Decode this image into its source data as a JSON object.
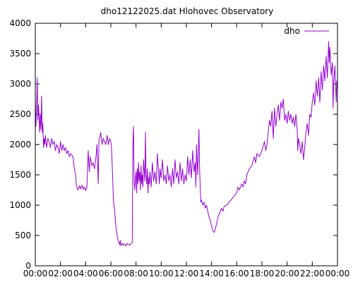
{
  "chart_data": {
    "type": "line",
    "title": "dho12122025.dat Hlohovec Observatory",
    "xlabel": "",
    "ylabel": "",
    "xlim": [
      0,
      24
    ],
    "ylim": [
      0,
      4000
    ],
    "grid": false,
    "legend_position": "top-right",
    "x_ticks": [
      {
        "value": 0,
        "label": "00:00"
      },
      {
        "value": 2,
        "label": "02:00"
      },
      {
        "value": 4,
        "label": "04:00"
      },
      {
        "value": 6,
        "label": "06:00"
      },
      {
        "value": 8,
        "label": "08:00"
      },
      {
        "value": 10,
        "label": "10:00"
      },
      {
        "value": 12,
        "label": "12:00"
      },
      {
        "value": 14,
        "label": "14:00"
      },
      {
        "value": 16,
        "label": "16:00"
      },
      {
        "value": 18,
        "label": "18:00"
      },
      {
        "value": 20,
        "label": "20:00"
      },
      {
        "value": 22,
        "label": "22:00"
      },
      {
        "value": 24,
        "label": "00:00"
      }
    ],
    "y_ticks": [
      {
        "value": 0,
        "label": "0"
      },
      {
        "value": 500,
        "label": "500"
      },
      {
        "value": 1000,
        "label": "1000"
      },
      {
        "value": 1500,
        "label": "1500"
      },
      {
        "value": 2000,
        "label": "2000"
      },
      {
        "value": 2500,
        "label": "2500"
      },
      {
        "value": 3000,
        "label": "3000"
      },
      {
        "value": 3500,
        "label": "3500"
      },
      {
        "value": 4000,
        "label": "4000"
      }
    ],
    "series": [
      {
        "name": "dho",
        "color": "#9400d3",
        "points": [
          [
            0.0,
            2750
          ],
          [
            0.05,
            2300
          ],
          [
            0.1,
            2600
          ],
          [
            0.15,
            3100
          ],
          [
            0.2,
            2400
          ],
          [
            0.25,
            2650
          ],
          [
            0.3,
            2450
          ],
          [
            0.35,
            2200
          ],
          [
            0.4,
            2500
          ],
          [
            0.45,
            2250
          ],
          [
            0.5,
            2800
          ],
          [
            0.55,
            2200
          ],
          [
            0.6,
            2350
          ],
          [
            0.65,
            1950
          ],
          [
            0.7,
            2100
          ],
          [
            0.75,
            2000
          ],
          [
            0.8,
            2150
          ],
          [
            0.9,
            1950
          ],
          [
            1.0,
            2100
          ],
          [
            1.1,
            2050
          ],
          [
            1.2,
            1950
          ],
          [
            1.3,
            2100
          ],
          [
            1.4,
            2000
          ],
          [
            1.5,
            2050
          ],
          [
            1.6,
            1900
          ],
          [
            1.7,
            2000
          ],
          [
            1.8,
            1950
          ],
          [
            1.9,
            1850
          ],
          [
            2.0,
            2050
          ],
          [
            2.1,
            1900
          ],
          [
            2.2,
            2000
          ],
          [
            2.3,
            1900
          ],
          [
            2.4,
            1950
          ],
          [
            2.5,
            1850
          ],
          [
            2.6,
            1900
          ],
          [
            2.7,
            1800
          ],
          [
            2.8,
            1850
          ],
          [
            3.0,
            1800
          ],
          [
            3.1,
            1600
          ],
          [
            3.2,
            1500
          ],
          [
            3.25,
            1350
          ],
          [
            3.3,
            1300
          ],
          [
            3.4,
            1250
          ],
          [
            3.5,
            1320
          ],
          [
            3.6,
            1270
          ],
          [
            3.7,
            1330
          ],
          [
            3.8,
            1260
          ],
          [
            3.9,
            1300
          ],
          [
            4.0,
            1240
          ],
          [
            4.1,
            1300
          ],
          [
            4.15,
            1600
          ],
          [
            4.2,
            1900
          ],
          [
            4.25,
            1700
          ],
          [
            4.3,
            1550
          ],
          [
            4.35,
            1800
          ],
          [
            4.4,
            1750
          ],
          [
            4.5,
            1650
          ],
          [
            4.6,
            1700
          ],
          [
            4.7,
            1600
          ],
          [
            4.8,
            1750
          ],
          [
            4.9,
            2000
          ],
          [
            5.0,
            1350
          ],
          [
            5.05,
            2050
          ],
          [
            5.1,
            2100
          ],
          [
            5.2,
            2200
          ],
          [
            5.3,
            2000
          ],
          [
            5.4,
            2100
          ],
          [
            5.5,
            2050
          ],
          [
            5.6,
            2000
          ],
          [
            5.7,
            2150
          ],
          [
            5.8,
            2000
          ],
          [
            5.9,
            2100
          ],
          [
            6.0,
            2050
          ],
          [
            6.05,
            1950
          ],
          [
            6.1,
            1700
          ],
          [
            6.15,
            1400
          ],
          [
            6.2,
            1100
          ],
          [
            6.3,
            900
          ],
          [
            6.4,
            650
          ],
          [
            6.5,
            500
          ],
          [
            6.6,
            400
          ],
          [
            6.7,
            350
          ],
          [
            6.75,
            420
          ],
          [
            6.8,
            330
          ],
          [
            6.9,
            370
          ],
          [
            7.0,
            340
          ],
          [
            7.1,
            360
          ],
          [
            7.2,
            330
          ],
          [
            7.3,
            370
          ],
          [
            7.4,
            350
          ],
          [
            7.5,
            340
          ],
          [
            7.6,
            360
          ],
          [
            7.7,
            380
          ],
          [
            7.75,
            2000
          ],
          [
            7.8,
            2300
          ],
          [
            7.85,
            1400
          ],
          [
            7.9,
            1250
          ],
          [
            7.95,
            1450
          ],
          [
            8.0,
            1550
          ],
          [
            8.05,
            1200
          ],
          [
            8.1,
            1600
          ],
          [
            8.15,
            1350
          ],
          [
            8.2,
            1700
          ],
          [
            8.25,
            1400
          ],
          [
            8.3,
            1550
          ],
          [
            8.35,
            1250
          ],
          [
            8.4,
            1650
          ],
          [
            8.45,
            1350
          ],
          [
            8.5,
            1500
          ],
          [
            8.55,
            1300
          ],
          [
            8.6,
            1750
          ],
          [
            8.7,
            1400
          ],
          [
            8.75,
            2200
          ],
          [
            8.8,
            1500
          ],
          [
            8.85,
            1350
          ],
          [
            8.9,
            1600
          ],
          [
            8.95,
            1200
          ],
          [
            9.0,
            1450
          ],
          [
            9.05,
            1350
          ],
          [
            9.1,
            1550
          ],
          [
            9.2,
            1300
          ],
          [
            9.3,
            1700
          ],
          [
            9.4,
            1400
          ],
          [
            9.5,
            1550
          ],
          [
            9.6,
            1350
          ],
          [
            9.7,
            1850
          ],
          [
            9.8,
            1500
          ],
          [
            9.85,
            1350
          ],
          [
            9.9,
            1600
          ],
          [
            10.0,
            1450
          ],
          [
            10.1,
            1750
          ],
          [
            10.2,
            1400
          ],
          [
            10.3,
            1500
          ],
          [
            10.4,
            1350
          ],
          [
            10.5,
            1650
          ],
          [
            10.6,
            1400
          ],
          [
            10.7,
            1500
          ],
          [
            10.8,
            1300
          ],
          [
            10.9,
            1600
          ],
          [
            11.0,
            1350
          ],
          [
            11.1,
            1750
          ],
          [
            11.2,
            1450
          ],
          [
            11.3,
            1550
          ],
          [
            11.4,
            1350
          ],
          [
            11.5,
            1700
          ],
          [
            11.6,
            1400
          ],
          [
            11.7,
            1600
          ],
          [
            11.8,
            1350
          ],
          [
            11.9,
            1500
          ],
          [
            12.0,
            1400
          ],
          [
            12.1,
            1800
          ],
          [
            12.2,
            1500
          ],
          [
            12.3,
            1750
          ],
          [
            12.4,
            1450
          ],
          [
            12.5,
            1900
          ],
          [
            12.6,
            1550
          ],
          [
            12.7,
            1700
          ],
          [
            12.75,
            1300
          ],
          [
            12.8,
            2000
          ],
          [
            12.9,
            1500
          ],
          [
            13.0,
            2250
          ],
          [
            13.05,
            1600
          ],
          [
            13.1,
            1300
          ],
          [
            13.15,
            1050
          ],
          [
            13.2,
            1080
          ],
          [
            13.3,
            1000
          ],
          [
            13.4,
            1050
          ],
          [
            13.5,
            950
          ],
          [
            13.6,
            1000
          ],
          [
            13.7,
            900
          ],
          [
            13.8,
            800
          ],
          [
            13.9,
            750
          ],
          [
            14.0,
            650
          ],
          [
            14.1,
            580
          ],
          [
            14.2,
            550
          ],
          [
            14.3,
            600
          ],
          [
            14.4,
            700
          ],
          [
            14.5,
            800
          ],
          [
            14.6,
            850
          ],
          [
            14.7,
            900
          ],
          [
            14.8,
            950
          ],
          [
            14.9,
            900
          ],
          [
            15.0,
            980
          ],
          [
            15.2,
            1000
          ],
          [
            15.4,
            1050
          ],
          [
            15.6,
            1100
          ],
          [
            15.8,
            1150
          ],
          [
            16.0,
            1200
          ],
          [
            16.1,
            1300
          ],
          [
            16.2,
            1250
          ],
          [
            16.4,
            1350
          ],
          [
            16.5,
            1300
          ],
          [
            16.6,
            1400
          ],
          [
            16.7,
            1350
          ],
          [
            16.8,
            1500
          ],
          [
            17.0,
            1600
          ],
          [
            17.2,
            1650
          ],
          [
            17.4,
            1800
          ],
          [
            17.5,
            1700
          ],
          [
            17.6,
            1850
          ],
          [
            17.8,
            1800
          ],
          [
            18.0,
            1900
          ],
          [
            18.2,
            2050
          ],
          [
            18.3,
            1900
          ],
          [
            18.4,
            2000
          ],
          [
            18.5,
            2200
          ],
          [
            18.6,
            2400
          ],
          [
            18.7,
            2300
          ],
          [
            18.8,
            2550
          ],
          [
            18.9,
            2100
          ],
          [
            19.0,
            2600
          ],
          [
            19.1,
            2300
          ],
          [
            19.2,
            2500
          ],
          [
            19.3,
            2650
          ],
          [
            19.4,
            2400
          ],
          [
            19.5,
            2700
          ],
          [
            19.6,
            2600
          ],
          [
            19.7,
            2750
          ],
          [
            19.8,
            2400
          ],
          [
            19.9,
            2500
          ],
          [
            20.0,
            2350
          ],
          [
            20.1,
            2550
          ],
          [
            20.2,
            2400
          ],
          [
            20.3,
            2500
          ],
          [
            20.4,
            2350
          ],
          [
            20.5,
            2450
          ],
          [
            20.6,
            2300
          ],
          [
            20.7,
            2500
          ],
          [
            20.8,
            2250
          ],
          [
            20.85,
            1900
          ],
          [
            20.9,
            2100
          ],
          [
            21.0,
            2000
          ],
          [
            21.1,
            1850
          ],
          [
            21.2,
            2050
          ],
          [
            21.3,
            1750
          ],
          [
            21.4,
            1950
          ],
          [
            21.5,
            2200
          ],
          [
            21.6,
            2350
          ],
          [
            21.7,
            2150
          ],
          [
            21.8,
            2500
          ],
          [
            21.9,
            2450
          ],
          [
            22.0,
            2700
          ],
          [
            22.1,
            2850
          ],
          [
            22.2,
            2650
          ],
          [
            22.3,
            3050
          ],
          [
            22.4,
            2800
          ],
          [
            22.5,
            3100
          ],
          [
            22.6,
            2700
          ],
          [
            22.7,
            3200
          ],
          [
            22.8,
            2900
          ],
          [
            22.9,
            3300
          ],
          [
            23.0,
            3050
          ],
          [
            23.1,
            3450
          ],
          [
            23.2,
            3100
          ],
          [
            23.3,
            3700
          ],
          [
            23.35,
            3350
          ],
          [
            23.4,
            3600
          ],
          [
            23.5,
            3150
          ],
          [
            23.6,
            3350
          ],
          [
            23.65,
            2600
          ],
          [
            23.7,
            3000
          ],
          [
            23.8,
            3300
          ],
          [
            23.9,
            2700
          ],
          [
            23.95,
            3050
          ],
          [
            24.0,
            2900
          ]
        ]
      }
    ]
  }
}
